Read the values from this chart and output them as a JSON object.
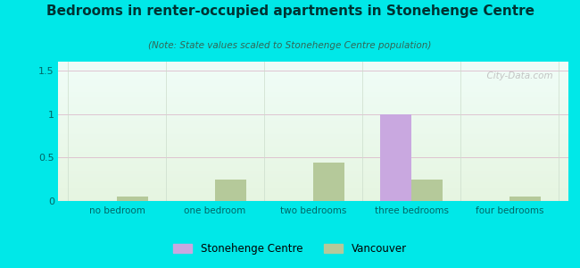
{
  "title": "Bedrooms in renter-occupied apartments in Stonehenge Centre",
  "subtitle": "(Note: State values scaled to Stonehenge Centre population)",
  "categories": [
    "no bedroom",
    "one bedroom",
    "two bedrooms",
    "three bedrooms",
    "four bedrooms"
  ],
  "stonehenge_values": [
    0.0,
    0.0,
    0.0,
    1.0,
    0.0
  ],
  "vancouver_values": [
    0.05,
    0.25,
    0.44,
    0.25,
    0.05
  ],
  "stonehenge_color": "#c9a8e0",
  "vancouver_color": "#b5c99a",
  "ylim": [
    0,
    1.6
  ],
  "yticks": [
    0,
    0.5,
    1,
    1.5
  ],
  "background_top": "#eaf5f0",
  "background_bottom": "#eaf5e8",
  "outer_bg": "#00e8e8",
  "bar_width": 0.32,
  "watermark": "  City-Data.com"
}
